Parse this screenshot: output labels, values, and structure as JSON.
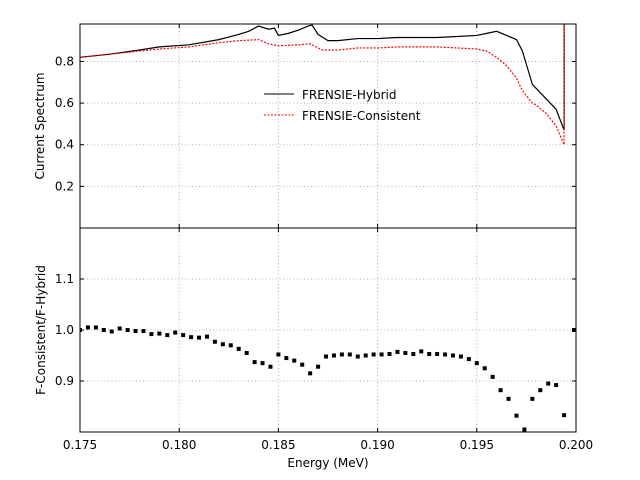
{
  "chart_data": [
    {
      "type": "line",
      "ylabel": "Current Spectrum",
      "xlabel": "",
      "xlim": [
        0.175,
        0.2
      ],
      "ylim": [
        0.0,
        0.98
      ],
      "xticks": [
        0.175,
        0.18,
        0.185,
        0.19,
        0.195,
        0.2
      ],
      "yticks": [
        0.2,
        0.4,
        0.6,
        0.8
      ],
      "ytick_labels": [
        "0.2",
        "0.4",
        "0.6",
        "0.8"
      ],
      "grid": true,
      "legend": "center-right",
      "series": [
        {
          "name": "FRENSIE-Hybrid",
          "color": "#000000",
          "style": "solid",
          "x": [
            0.175,
            0.1765,
            0.178,
            0.179,
            0.1805,
            0.182,
            0.183,
            0.1835,
            0.184,
            0.1845,
            0.1848,
            0.185,
            0.1855,
            0.186,
            0.1865,
            0.1867,
            0.187,
            0.1875,
            0.188,
            0.189,
            0.19,
            0.191,
            0.192,
            0.193,
            0.194,
            0.195,
            0.1955,
            0.196,
            0.1965,
            0.197,
            0.1973,
            0.1978,
            0.198,
            0.1985,
            0.199,
            0.1994,
            0.1994,
            0.1994
          ],
          "y": [
            0.82,
            0.835,
            0.855,
            0.87,
            0.88,
            0.905,
            0.93,
            0.945,
            0.97,
            0.955,
            0.96,
            0.925,
            0.935,
            0.95,
            0.97,
            0.975,
            0.93,
            0.9,
            0.9,
            0.91,
            0.91,
            0.915,
            0.915,
            0.915,
            0.92,
            0.925,
            0.935,
            0.945,
            0.925,
            0.905,
            0.85,
            0.69,
            0.67,
            0.62,
            0.57,
            0.47,
            0.98,
            0.98
          ]
        },
        {
          "name": "FRENSIE-Consistent",
          "color": "#ff0000",
          "style": "dashed",
          "x": [
            0.175,
            0.1765,
            0.178,
            0.179,
            0.1805,
            0.182,
            0.183,
            0.184,
            0.1845,
            0.185,
            0.186,
            0.1866,
            0.1872,
            0.188,
            0.189,
            0.19,
            0.191,
            0.192,
            0.193,
            0.194,
            0.195,
            0.1955,
            0.196,
            0.1965,
            0.197,
            0.1973,
            0.1978,
            0.198,
            0.1985,
            0.199,
            0.1994,
            0.1994,
            0.1994
          ],
          "y": [
            0.82,
            0.835,
            0.85,
            0.86,
            0.87,
            0.89,
            0.9,
            0.905,
            0.885,
            0.875,
            0.88,
            0.885,
            0.855,
            0.855,
            0.865,
            0.865,
            0.87,
            0.87,
            0.87,
            0.865,
            0.86,
            0.85,
            0.82,
            0.78,
            0.72,
            0.66,
            0.6,
            0.59,
            0.55,
            0.49,
            0.4,
            0.98,
            0.98
          ]
        }
      ]
    },
    {
      "type": "scatter",
      "ylabel": "F-Consistent/F-Hybrid",
      "xlabel": "Energy (MeV)",
      "xlim": [
        0.175,
        0.2
      ],
      "ylim": [
        0.8,
        1.2
      ],
      "xticks": [
        0.175,
        0.18,
        0.185,
        0.19,
        0.195,
        0.2
      ],
      "xtick_labels": [
        "0.175",
        "0.180",
        "0.185",
        "0.190",
        "0.195",
        "0.200"
      ],
      "yticks": [
        0.9,
        1.0,
        1.1
      ],
      "ytick_labels": [
        "0.9",
        "1.0",
        "1.1"
      ],
      "grid": true,
      "series": [
        {
          "color": "#000000",
          "x": [
            0.175,
            0.1754,
            0.1758,
            0.1762,
            0.1766,
            0.177,
            0.1774,
            0.1778,
            0.1782,
            0.1786,
            0.179,
            0.1794,
            0.1798,
            0.1802,
            0.1806,
            0.181,
            0.1814,
            0.1818,
            0.1822,
            0.1826,
            0.183,
            0.1834,
            0.1838,
            0.1842,
            0.1846,
            0.185,
            0.1854,
            0.1858,
            0.1862,
            0.1866,
            0.187,
            0.1874,
            0.1878,
            0.1882,
            0.1886,
            0.189,
            0.1894,
            0.1898,
            0.1902,
            0.1906,
            0.191,
            0.1914,
            0.1918,
            0.1922,
            0.1926,
            0.193,
            0.1934,
            0.1938,
            0.1942,
            0.1946,
            0.195,
            0.1954,
            0.1958,
            0.1962,
            0.1966,
            0.197,
            0.1974,
            0.1978,
            0.1982,
            0.1986,
            0.199,
            0.1994,
            0.1999
          ],
          "y": [
            1.0,
            1.005,
            1.005,
            1.0,
            0.997,
            1.003,
            1.0,
            0.998,
            0.998,
            0.992,
            0.993,
            0.99,
            0.995,
            0.99,
            0.986,
            0.985,
            0.987,
            0.977,
            0.972,
            0.97,
            0.963,
            0.955,
            0.937,
            0.935,
            0.928,
            0.952,
            0.945,
            0.94,
            0.932,
            0.915,
            0.928,
            0.948,
            0.95,
            0.952,
            0.952,
            0.948,
            0.95,
            0.952,
            0.952,
            0.953,
            0.957,
            0.955,
            0.953,
            0.958,
            0.953,
            0.953,
            0.952,
            0.95,
            0.948,
            0.943,
            0.935,
            0.925,
            0.908,
            0.882,
            0.865,
            0.832,
            0.805,
            0.865,
            0.882,
            0.895,
            0.892,
            0.833,
            1.0
          ]
        }
      ]
    }
  ]
}
